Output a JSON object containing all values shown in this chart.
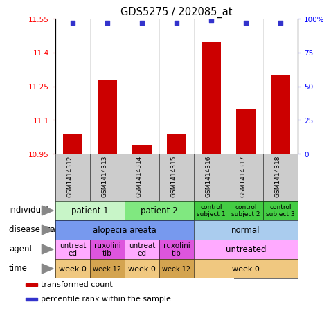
{
  "title": "GDS5275 / 202085_at",
  "samples": [
    "GSM1414312",
    "GSM1414313",
    "GSM1414314",
    "GSM1414315",
    "GSM1414316",
    "GSM1414317",
    "GSM1414318"
  ],
  "bar_values": [
    11.04,
    11.28,
    10.99,
    11.04,
    11.45,
    11.15,
    11.3
  ],
  "percentile_values": [
    97,
    97,
    97,
    97,
    99,
    97,
    97
  ],
  "ylim_left": [
    10.95,
    11.55
  ],
  "ylim_right": [
    0,
    100
  ],
  "yticks_left": [
    10.95,
    11.1,
    11.25,
    11.4,
    11.55
  ],
  "yticks_right": [
    0,
    25,
    50,
    75,
    100
  ],
  "bar_color": "#cc0000",
  "dot_color": "#3333cc",
  "annotation_rows": [
    {
      "label": "individual",
      "cells": [
        {
          "text": "patient 1",
          "span": 2,
          "color": "#c8f5c8",
          "fontsize": 8.5
        },
        {
          "text": "patient 2",
          "span": 2,
          "color": "#80e880",
          "fontsize": 8.5
        },
        {
          "text": "control\nsubject 1",
          "span": 1,
          "color": "#44cc44",
          "fontsize": 6.5
        },
        {
          "text": "control\nsubject 2",
          "span": 1,
          "color": "#44cc44",
          "fontsize": 6.5
        },
        {
          "text": "control\nsubject 3",
          "span": 1,
          "color": "#44cc44",
          "fontsize": 6.5
        }
      ]
    },
    {
      "label": "disease state",
      "cells": [
        {
          "text": "alopecia areata",
          "span": 4,
          "color": "#7799ee",
          "fontsize": 8.5
        },
        {
          "text": "normal",
          "span": 3,
          "color": "#aaccee",
          "fontsize": 8.5
        }
      ]
    },
    {
      "label": "agent",
      "cells": [
        {
          "text": "untreat\ned",
          "span": 1,
          "color": "#ffaaff",
          "fontsize": 7.5
        },
        {
          "text": "ruxolini\ntib",
          "span": 1,
          "color": "#dd55dd",
          "fontsize": 7.5
        },
        {
          "text": "untreat\ned",
          "span": 1,
          "color": "#ffaaff",
          "fontsize": 7.5
        },
        {
          "text": "ruxolini\ntib",
          "span": 1,
          "color": "#dd55dd",
          "fontsize": 7.5
        },
        {
          "text": "untreated",
          "span": 3,
          "color": "#ffaaff",
          "fontsize": 8.5
        }
      ]
    },
    {
      "label": "time",
      "cells": [
        {
          "text": "week 0",
          "span": 1,
          "color": "#f0c880",
          "fontsize": 8
        },
        {
          "text": "week 12",
          "span": 1,
          "color": "#d4a450",
          "fontsize": 7
        },
        {
          "text": "week 0",
          "span": 1,
          "color": "#f0c880",
          "fontsize": 8
        },
        {
          "text": "week 12",
          "span": 1,
          "color": "#d4a450",
          "fontsize": 7
        },
        {
          "text": "week 0",
          "span": 3,
          "color": "#f0c880",
          "fontsize": 8
        }
      ]
    }
  ],
  "legend_items": [
    {
      "color": "#cc0000",
      "label": "transformed count"
    },
    {
      "color": "#3333cc",
      "label": "percentile rank within the sample"
    }
  ],
  "sample_box_color": "#cccccc",
  "label_arrow_color": "#888888"
}
